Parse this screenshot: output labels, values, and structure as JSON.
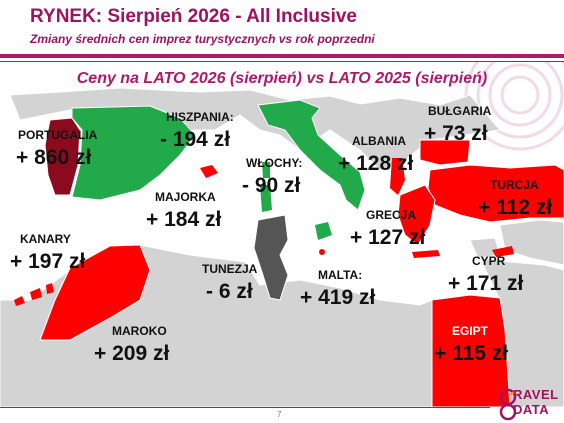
{
  "header": {
    "title": "RYNEK: Sierpień 2026 - All Inclusive",
    "subtitle": "Zmiany średnich cen imprez turystycznych vs rok poprzedni"
  },
  "map_title": "Ceny na LATO 2026 (sierpień) vs  LATO 2025 (sierpień)",
  "colors": {
    "increase": "#ff0000",
    "decrease": "#22aa4a",
    "strong_increase": "#8b0a1e",
    "neutral": "#555555",
    "land": "#d3d3d3",
    "accent": "#a0115f"
  },
  "destinations": [
    {
      "key": "portugalia",
      "name": "PORTUGALIA",
      "change": "+ 860 zł",
      "value": 860
    },
    {
      "key": "hiszpania",
      "name": "HISZPANIA:",
      "change": "- 194 zł",
      "value": -194
    },
    {
      "key": "wlochy",
      "name": "WŁOCHY:",
      "change": "- 90 zł",
      "value": -90
    },
    {
      "key": "albania",
      "name": "ALBANIA",
      "change": "+ 128 zł",
      "value": 128
    },
    {
      "key": "bulgaria",
      "name": "BUŁGARIA",
      "change": "+ 73 zł",
      "value": 73
    },
    {
      "key": "turcja",
      "name": "TURCJA",
      "change": "+ 112 zł",
      "value": 112
    },
    {
      "key": "majorka",
      "name": "MAJORKA",
      "change": "+ 184 zł",
      "value": 184
    },
    {
      "key": "grecja",
      "name": "GRECJA",
      "change": "+ 127 zł",
      "value": 127
    },
    {
      "key": "kanary",
      "name": "KANARY",
      "change": "+ 197 zł",
      "value": 197
    },
    {
      "key": "tunezja",
      "name": "TUNEZJA",
      "change": "- 6 zł",
      "value": -6
    },
    {
      "key": "malta",
      "name": "MALTA:",
      "change": "+ 419 zł",
      "value": 419
    },
    {
      "key": "cypr",
      "name": "CYPR",
      "change": "+ 171 zł",
      "value": 171
    },
    {
      "key": "maroko",
      "name": "MAROKO",
      "change": "+ 209 zł",
      "value": 209
    },
    {
      "key": "egipt",
      "name": "EGIPT",
      "change": "+ 115 zł",
      "value": 115
    }
  ],
  "footer": {
    "page": "7",
    "logo_line1": "RAVEL",
    "logo_line2": "DATA"
  }
}
